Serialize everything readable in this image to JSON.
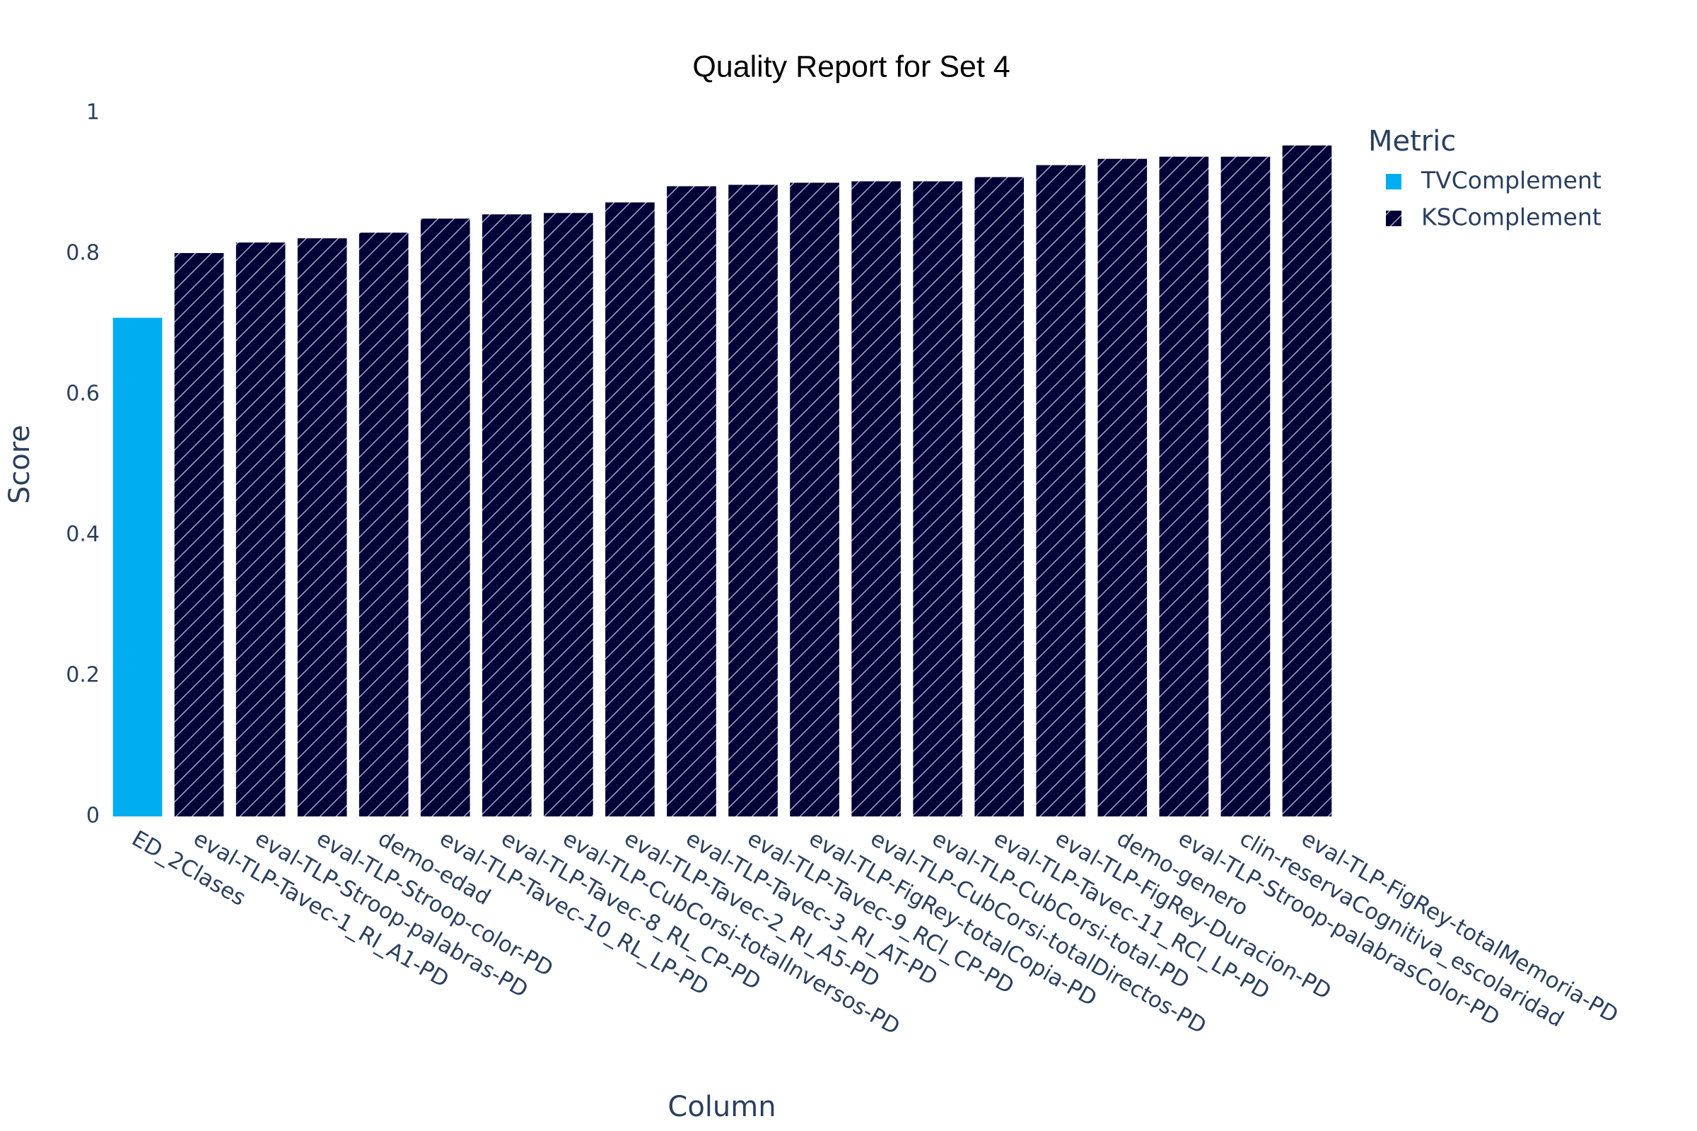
{
  "chart_data": {
    "type": "bar",
    "title": "Quality Report for Set 4",
    "x_label": "Column",
    "y_label": "Score",
    "legend_title": "Metric",
    "categories": [
      "ED_2Clases",
      "eval-TLP-Tavec-1_RI_A1-PD",
      "eval-TLP-Stroop-palabras-PD",
      "eval-TLP-Stroop-color-PD",
      "demo-edad",
      "eval-TLP-Tavec-10_RL_LP-PD",
      "eval-TLP-Tavec-8_RL_CP-PD",
      "eval-TLP-CubCorsi-totalInversos-PD",
      "eval-TLP-Tavec-2_RI_A5-PD",
      "eval-TLP-Tavec-3_RI_AT-PD",
      "eval-TLP-Tavec-9_RCl_CP-PD",
      "eval-TLP-FigRey-totalCopia-PD",
      "eval-TLP-CubCorsi-totalDirectos-PD",
      "eval-TLP-CubCorsi-total-PD",
      "eval-TLP-Tavec-11_RCl_LP-PD",
      "eval-TLP-FigRey-Duracion-PD",
      "demo-genero",
      "eval-TLP-Stroop-palabrasColor-PD",
      "clin-reservaCognitiva_escolaridad",
      "eval-TLP-FigRey-totalMemoria-PD"
    ],
    "series": [
      {
        "name": "TVComplement",
        "color": "#00aeef",
        "pattern": false,
        "values": [
          0.709,
          null,
          null,
          null,
          null,
          null,
          null,
          null,
          null,
          null,
          null,
          null,
          null,
          null,
          null,
          null,
          null,
          null,
          null,
          null
        ]
      },
      {
        "name": "KSComplement",
        "color": "#000036",
        "pattern": true,
        "values": [
          null,
          0.801,
          0.816,
          0.822,
          0.83,
          0.85,
          0.856,
          0.858,
          0.873,
          0.896,
          0.898,
          0.901,
          0.903,
          0.903,
          0.909,
          0.926,
          0.935,
          0.938,
          0.938,
          0.954
        ]
      }
    ],
    "ylim": [
      0,
      1
    ],
    "yticks": [
      0,
      0.2,
      0.4,
      0.6,
      0.8,
      1
    ],
    "grid": false,
    "legend": "right"
  }
}
